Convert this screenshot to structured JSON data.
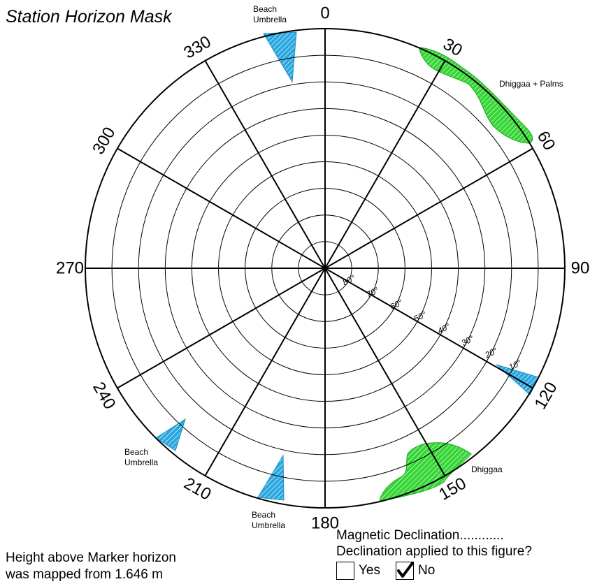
{
  "title": "Station Horizon Mask",
  "height_note_line1": "Height above Marker horizon",
  "height_note_line2": "was mapped from 1.646 m",
  "magnetic_declination_label": "Magnetic Declination............",
  "declination_question": "Declination applied to this figure?",
  "checkbox_yes": {
    "label": "Yes",
    "checked": false
  },
  "checkbox_no": {
    "label": "No",
    "checked": true
  },
  "azimuth_labels": [
    "0",
    "30",
    "60",
    "90",
    "120",
    "150",
    "180",
    "210",
    "240",
    "270",
    "300",
    "330"
  ],
  "elevation_labels": [
    "80°",
    "70°",
    "60°",
    "50°",
    "40°",
    "30°",
    "20°",
    "10°"
  ],
  "obstructions": [
    {
      "label": "Beach\nUmbrella",
      "type": "umbrella",
      "color": "#29a8e0",
      "azimuth": [
        347,
        354
      ],
      "elevation_top": 18
    },
    {
      "label": "Dhiggaa + Palms",
      "type": "vegetation",
      "color": "#33d633",
      "azimuth": [
        23,
        58
      ],
      "elevation_top": 22
    },
    {
      "label": "",
      "type": "umbrella",
      "color": "#29a8e0",
      "azimuth": [
        117,
        120
      ],
      "elevation_top": 20
    },
    {
      "label": "Dhiggaa",
      "type": "vegetation",
      "color": "#33d633",
      "azimuth": [
        141,
        160
      ],
      "elevation_top": 30
    },
    {
      "label": "Beach\nUmbrella",
      "type": "umbrella",
      "color": "#29a8e0",
      "azimuth": [
        196,
        204
      ],
      "elevation_top": 20
    },
    {
      "label": "Beach\nUmbrella",
      "type": "umbrella",
      "color": "#29a8e0",
      "azimuth": [
        222,
        230
      ],
      "elevation_top": 15
    }
  ]
}
